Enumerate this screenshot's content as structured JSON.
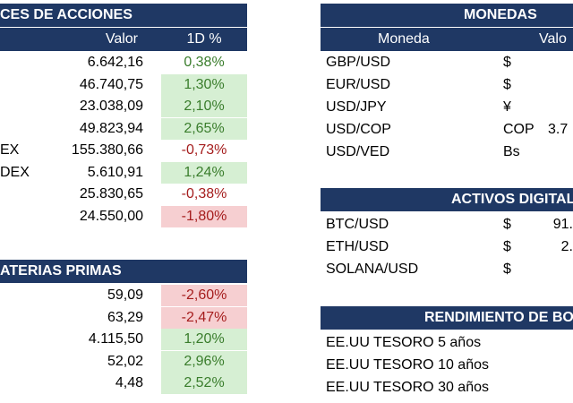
{
  "indices": {
    "title": "CES DE ACCIONES",
    "col_value": "Valor",
    "col_change": "1D %",
    "rows": [
      {
        "name": "",
        "value": "6.642,16",
        "change": "0,38%",
        "dir": "pos",
        "bg": "none"
      },
      {
        "name": "",
        "value": "46.740,75",
        "change": "1,30%",
        "dir": "pos",
        "bg": "pos"
      },
      {
        "name": "",
        "value": "23.038,09",
        "change": "2,10%",
        "dir": "pos",
        "bg": "pos"
      },
      {
        "name": "",
        "value": "49.823,94",
        "change": "2,65%",
        "dir": "pos",
        "bg": "pos"
      },
      {
        "name": "EX",
        "value": "155.380,66",
        "change": "-0,73%",
        "dir": "neg",
        "bg": "none"
      },
      {
        "name": "DEX",
        "value": "5.610,91",
        "change": "1,24%",
        "dir": "pos",
        "bg": "pos"
      },
      {
        "name": "",
        "value": "25.830,65",
        "change": "-0,38%",
        "dir": "neg",
        "bg": "none"
      },
      {
        "name": "",
        "value": "24.550,00",
        "change": "-1,80%",
        "dir": "neg",
        "bg": "neg"
      }
    ]
  },
  "commodities": {
    "title": "ATERIAS PRIMAS",
    "rows": [
      {
        "value": "59,09",
        "change": "-2,60%",
        "dir": "neg",
        "bg": "neg"
      },
      {
        "value": "63,29",
        "change": "-2,47%",
        "dir": "neg",
        "bg": "neg"
      },
      {
        "value": "4.115,50",
        "change": "1,20%",
        "dir": "pos",
        "bg": "pos"
      },
      {
        "value": "52,02",
        "change": "2,96%",
        "dir": "pos",
        "bg": "pos"
      },
      {
        "value": "4,48",
        "change": "2,52%",
        "dir": "pos",
        "bg": "pos"
      }
    ]
  },
  "currencies": {
    "title": "MONEDAS",
    "col_currency": "Moneda",
    "col_value": "Valo",
    "rows": [
      {
        "pair": "GBP/USD",
        "symbol": "$",
        "value": ""
      },
      {
        "pair": "EUR/USD",
        "symbol": "$",
        "value": ""
      },
      {
        "pair": "USD/JPY",
        "symbol": "¥",
        "value": ""
      },
      {
        "pair": "USD/COP",
        "symbol": "COP",
        "value": "3.7"
      },
      {
        "pair": "USD/VED",
        "symbol": "Bs",
        "value": ""
      }
    ]
  },
  "digital": {
    "title": "ACTIVOS DIGITAL",
    "rows": [
      {
        "pair": "BTC/USD",
        "symbol": "$",
        "value": "91."
      },
      {
        "pair": "ETH/USD",
        "symbol": "$",
        "value": "2."
      },
      {
        "pair": "SOLANA/USD",
        "symbol": "$",
        "value": ""
      }
    ]
  },
  "bonds": {
    "title": "RENDIMIENTO DE BO",
    "rows": [
      {
        "name": "EE.UU TESORO 5 años"
      },
      {
        "name": "EE.UU TESORO 10 años"
      },
      {
        "name": "EE.UU TESORO 30 años"
      }
    ]
  },
  "colors": {
    "header_bg": "#1f3864",
    "positive_text": "#3a7d2c",
    "negative_text": "#a51d1d",
    "positive_fill": "#d6efd3",
    "negative_fill": "#f6cfd1"
  }
}
